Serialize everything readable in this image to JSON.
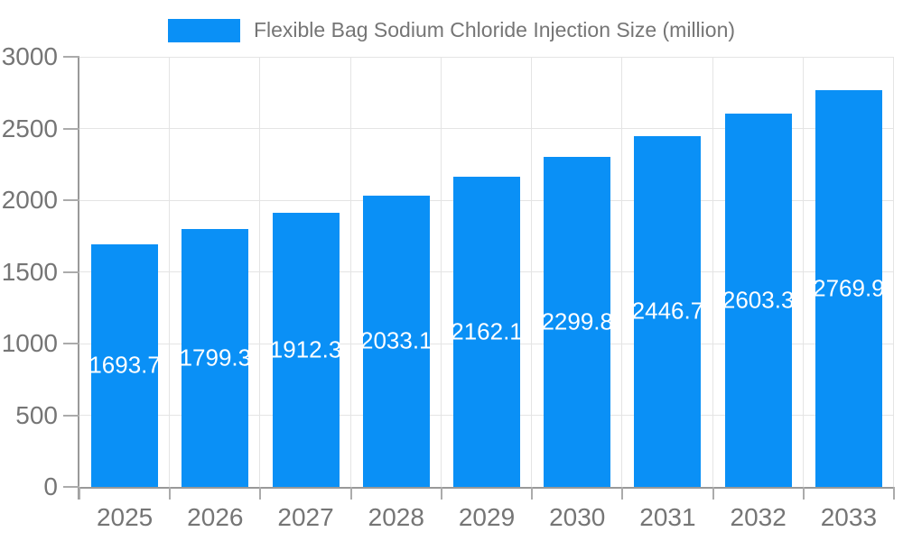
{
  "legend": {
    "label": "Flexible Bag Sodium Chloride Injection Size (million)"
  },
  "chart_data": {
    "type": "bar",
    "title": "Flexible Bag Sodium Chloride Injection Size (million)",
    "categories": [
      "2025",
      "2026",
      "2027",
      "2028",
      "2029",
      "2030",
      "2031",
      "2032",
      "2033"
    ],
    "series": [
      {
        "name": "Flexible Bag Sodium Chloride Injection Size (million)",
        "values": [
          1693.7,
          1799.3,
          1912.3,
          2033.1,
          2162.1,
          2299.8,
          2446.7,
          2603.3,
          2769.9
        ]
      }
    ],
    "value_labels": [
      "1693.7",
      "1799.3",
      "1912.3",
      "2033.1",
      "2162.1",
      "2299.8",
      "2446.7",
      "2603.3",
      "2769.9"
    ],
    "xlabel": "",
    "ylabel": "",
    "ylim": [
      0,
      3000
    ],
    "yticks": [
      0,
      500,
      1000,
      1500,
      2000,
      2500,
      3000
    ],
    "grid": true,
    "legend_position": "top",
    "bar_labels_inside": true,
    "colors": {
      "bar": "#0a90f6",
      "bar_label": "#ffffff",
      "axis": "#999999",
      "tick": "#ababab",
      "grid": "#e4e4e4",
      "text": "#757575"
    }
  }
}
